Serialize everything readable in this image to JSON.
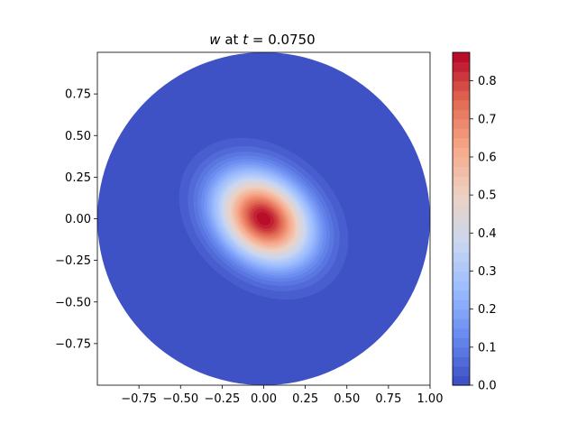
{
  "chart_data": {
    "type": "heatmap",
    "subtype": "filled-contour",
    "title": {
      "variable": "w",
      "middle": " at ",
      "time_symbol": "t",
      "equals": " = ",
      "time_value": "0.0750"
    },
    "domain": "unit disk",
    "xlim": [
      -1.0,
      1.0
    ],
    "ylim": [
      -1.0,
      1.0
    ],
    "x_ticks": [
      -0.75,
      -0.5,
      -0.25,
      0.0,
      0.25,
      0.5,
      0.75,
      1.0
    ],
    "x_tick_labels": [
      "−0.75",
      "−0.50",
      "−0.25",
      "0.00",
      "0.25",
      "0.50",
      "0.75",
      "1.00"
    ],
    "y_ticks": [
      0.75,
      0.5,
      0.25,
      0.0,
      -0.25,
      -0.5,
      -0.75
    ],
    "y_tick_labels": [
      "0.75",
      "0.50",
      "0.25",
      "0.00",
      "−0.25",
      "−0.50",
      "−0.75"
    ],
    "field": {
      "description_peak_center": [
        0.0,
        0.0
      ],
      "peak_value": 0.87,
      "sigma_major": 0.21,
      "sigma_minor": 0.16,
      "major_axis_angle_deg": -40
    },
    "colormap": "coolwarm",
    "colormap_stops": [
      "#3b4cc0",
      "#6788ee",
      "#9abbff",
      "#c9d7f0",
      "#edd1c2",
      "#f7a889",
      "#e26952",
      "#b40426"
    ],
    "colorbar": {
      "vmin": 0.0,
      "vmax": 0.875,
      "levels": 35,
      "ticks": [
        0.0,
        0.1,
        0.2,
        0.3,
        0.4,
        0.5,
        0.6,
        0.7,
        0.8
      ],
      "tick_labels": [
        "0.0",
        "0.1",
        "0.2",
        "0.3",
        "0.4",
        "0.5",
        "0.6",
        "0.7",
        "0.8"
      ]
    },
    "grid": false,
    "legend": "none"
  }
}
